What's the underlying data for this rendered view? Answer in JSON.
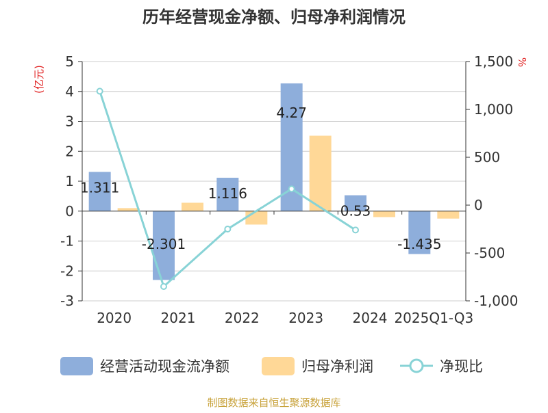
{
  "chart_data": {
    "type": "bar",
    "title": "历年经营现金净额、归母净利润情况",
    "left_axis": {
      "label": "(亿元)",
      "ylim": [
        -3,
        5
      ],
      "ticks": [
        -3,
        -2,
        -1,
        0,
        1,
        2,
        3,
        4,
        5
      ]
    },
    "right_axis": {
      "label": "%",
      "ylim": [
        -1000,
        1500
      ],
      "ticks": [
        -1000,
        -500,
        0,
        500,
        1000,
        1500
      ],
      "tick_labels": [
        "-1,000",
        "-500",
        "0",
        "500",
        "1,000",
        "1,500"
      ]
    },
    "categories": [
      "2020",
      "2021",
      "2022",
      "2023",
      "2024",
      "2025Q1-Q3"
    ],
    "series": [
      {
        "name": "经营活动现金流净额",
        "type": "bar",
        "axis": "left",
        "color": "#8eaedb",
        "values": [
          1.311,
          -2.301,
          1.116,
          4.27,
          0.53,
          -1.435
        ],
        "labels": [
          "1.311",
          "-2.301",
          "1.116",
          "4.27",
          "0.53",
          "-1.435"
        ]
      },
      {
        "name": "归母净利润",
        "type": "bar",
        "axis": "left",
        "color": "#ffd897",
        "values": [
          0.1,
          0.28,
          -0.45,
          2.52,
          -0.2,
          -0.25
        ]
      },
      {
        "name": "净现比",
        "type": "line",
        "axis": "right",
        "color": "#88d3d6",
        "values": [
          1190,
          -850,
          -250,
          170,
          -260,
          null
        ]
      }
    ],
    "grid": true,
    "legend_position": "bottom"
  },
  "footer": {
    "source": "制图数据来自恒生聚源数据库"
  }
}
